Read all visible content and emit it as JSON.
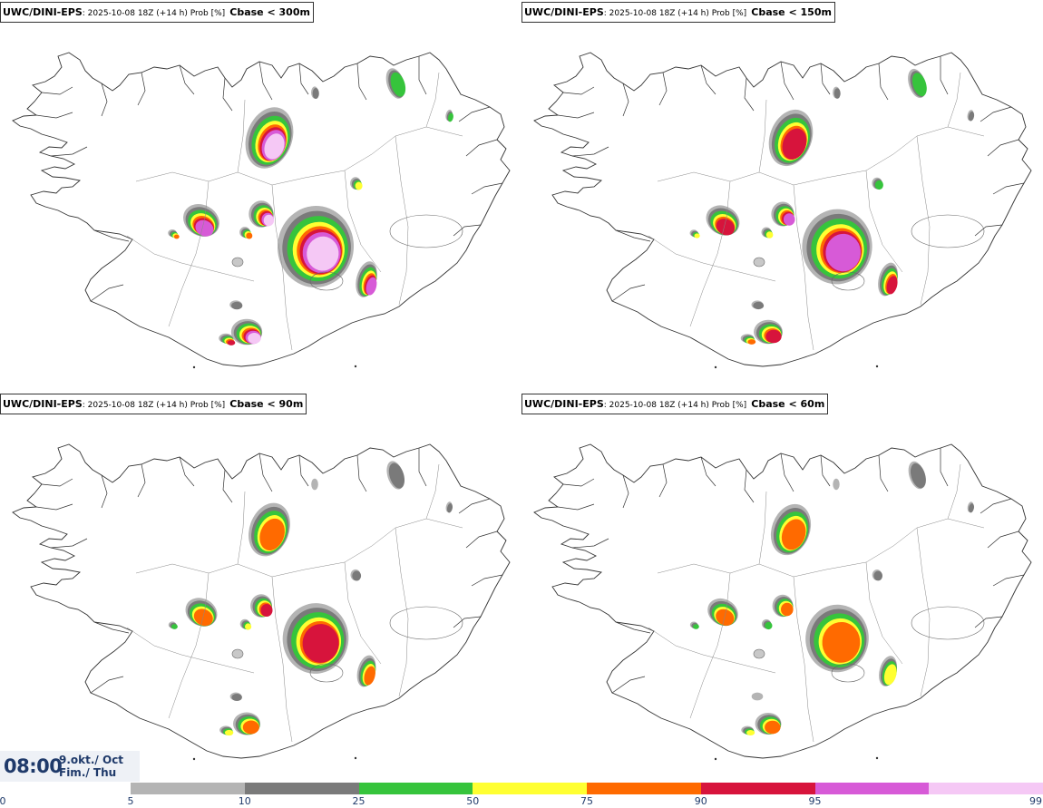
{
  "map": {
    "region": "Iceland",
    "panels": [
      {
        "model": "UWC/DINI-EPS",
        "meta": "2025-10-08 18Z (+14 h) Prob [%]",
        "param": "Cbase < 300m",
        "intensity": 1.0
      },
      {
        "model": "UWC/DINI-EPS",
        "meta": "2025-10-08 18Z (+14 h) Prob [%]",
        "param": "Cbase < 150m",
        "intensity": 0.82
      },
      {
        "model": "UWC/DINI-EPS",
        "meta": "2025-10-08 18Z (+14 h) Prob [%]",
        "param": "Cbase < 90m",
        "intensity": 0.7
      },
      {
        "model": "UWC/DINI-EPS",
        "meta": "2025-10-08 18Z (+14 h) Prob [%]",
        "param": "Cbase < 60m",
        "intensity": 0.62
      }
    ]
  },
  "valid_time": {
    "time": "08:00",
    "date_line1": "9.okt./ Oct",
    "date_line2": "Fim./ Thu"
  },
  "colorbar": {
    "ticks": [
      "0",
      "5",
      "10",
      "25",
      "50",
      "75",
      "90",
      "95",
      "99"
    ],
    "colors": [
      "#b4b4b4",
      "#7a7a7a",
      "#36c43c",
      "#ffff32",
      "#ff6a00",
      "#d7143c",
      "#d75ad7",
      "#f5c8f5"
    ]
  }
}
